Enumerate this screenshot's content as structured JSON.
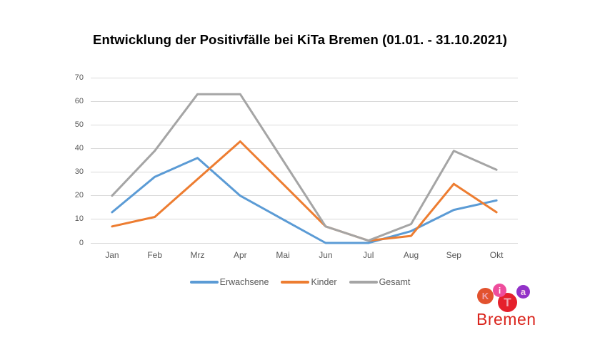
{
  "title": "Entwicklung der Positivfälle bei KiTa Bremen (01.01. - 31.10.2021)",
  "chart_data": {
    "type": "line",
    "categories": [
      "Jan",
      "Feb",
      "Mrz",
      "Apr",
      "Mai",
      "Jun",
      "Jul",
      "Aug",
      "Sep",
      "Okt"
    ],
    "series": [
      {
        "name": "Erwachsene",
        "color": "#5B9BD5",
        "values": [
          13,
          28,
          36,
          20,
          10,
          0,
          0,
          5,
          14,
          18
        ]
      },
      {
        "name": "Kinder",
        "color": "#ED7D31",
        "values": [
          7,
          11,
          27,
          43,
          25,
          7,
          1,
          3,
          25,
          13
        ]
      },
      {
        "name": "Gesamt",
        "color": "#A5A5A5",
        "values": [
          20,
          39,
          63,
          63,
          35,
          7,
          1,
          8,
          39,
          31
        ]
      }
    ],
    "ylim": [
      0,
      70
    ],
    "yticks": [
      0,
      10,
      20,
      30,
      40,
      50,
      60,
      70
    ],
    "grid": true,
    "legend_position": "bottom"
  },
  "colors": {
    "grid": "#D9D9D9",
    "axis_text": "#595959",
    "title_text": "#000000",
    "background": "#FFFFFF"
  },
  "logo": {
    "circles": [
      {
        "letter": "K",
        "circle_color": "#E2522E",
        "letter_color": "#F0A6B2"
      },
      {
        "letter": "i",
        "circle_color": "#EE4D9C",
        "letter_color": "#FFFFFF"
      },
      {
        "letter": "T",
        "circle_color": "#E5202C",
        "letter_color": "#F0A6B2"
      },
      {
        "letter": "a",
        "circle_color": "#9232C8",
        "letter_color": "#F7D9E9"
      }
    ],
    "text": "Bremen",
    "text_color": "#DA251D"
  }
}
